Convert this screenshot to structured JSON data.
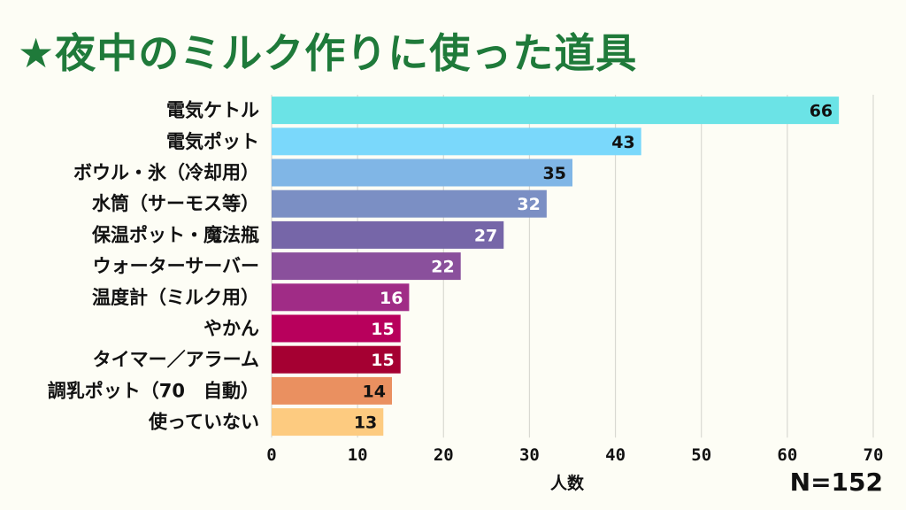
{
  "chart_data": {
    "type": "bar",
    "orientation": "horizontal",
    "title": "★夜中のミルク作りに使った道具",
    "xlabel": "人数",
    "ylabel": "",
    "xlim": [
      0,
      70
    ],
    "ticks": [
      0,
      10,
      20,
      30,
      40,
      50,
      60,
      70
    ],
    "grid": true,
    "note": "N=152",
    "categories": [
      "電気ケトル",
      "電気ポット",
      "ボウル・氷（冷却用）",
      "水筒（サーモス等）",
      "保温ポット・魔法瓶",
      "ウォーターサーバー",
      "温度計（ミルク用）",
      "やかん",
      "タイマー／アラーム",
      "調乳ポット（70　自動）",
      "使っていない"
    ],
    "values": [
      66,
      43,
      35,
      32,
      27,
      22,
      16,
      15,
      15,
      14,
      13
    ],
    "colors": [
      "#6be3e6",
      "#7ad8fb",
      "#80b6e6",
      "#7b8fc4",
      "#7666a8",
      "#8a509c",
      "#a02c86",
      "#b8005c",
      "#a50032",
      "#ea9060",
      "#fdcb80"
    ],
    "label_colors": [
      "#111111",
      "#111111",
      "#111111",
      "#ffffff",
      "#ffffff",
      "#ffffff",
      "#ffffff",
      "#ffffff",
      "#ffffff",
      "#111111",
      "#111111"
    ]
  }
}
